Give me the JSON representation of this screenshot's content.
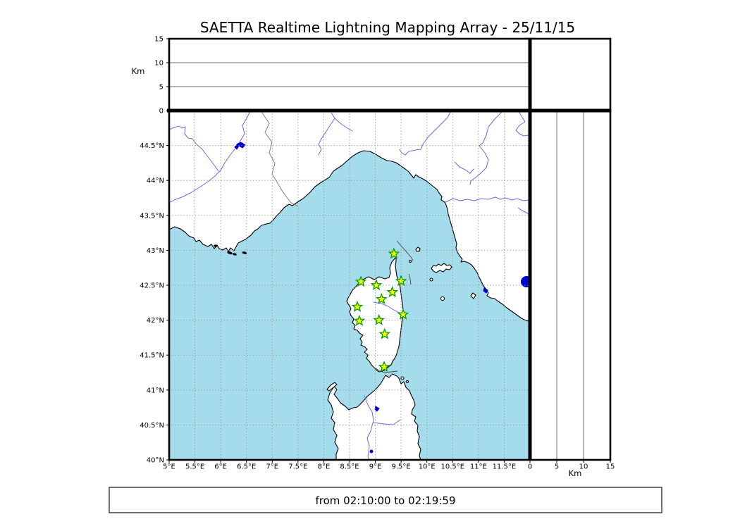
{
  "figure": {
    "title": "SAETTA Realtime Lightning Mapping Array - 25/11/15",
    "footer_text": "from 02:10:00 to 02:19:59"
  },
  "altitude_axis": {
    "label": "Km",
    "ticks": [
      0,
      5,
      10,
      15
    ],
    "max": 15
  },
  "map_axes": {
    "lon_range": [
      5.0,
      12.0
    ],
    "lat_range": [
      40.0,
      45.0
    ],
    "lon_ticks": [
      {
        "label": "5°E",
        "lon": 5.0
      },
      {
        "label": "5.5°E",
        "lon": 5.5
      },
      {
        "label": "6°E",
        "lon": 6.0
      },
      {
        "label": "6.5°E",
        "lon": 6.5
      },
      {
        "label": "7°E",
        "lon": 7.0
      },
      {
        "label": "7.5°E",
        "lon": 7.5
      },
      {
        "label": "8°E",
        "lon": 8.0
      },
      {
        "label": "8.5°E",
        "lon": 8.5
      },
      {
        "label": "9°E",
        "lon": 9.0
      },
      {
        "label": "9.5°E",
        "lon": 9.5
      },
      {
        "label": "10°E",
        "lon": 10.0
      },
      {
        "label": "10.5°E",
        "lon": 10.5
      },
      {
        "label": "11°E",
        "lon": 11.0
      },
      {
        "label": "11.5°E",
        "lon": 11.5
      }
    ],
    "lat_ticks": [
      {
        "label": "40°N",
        "lat": 40.0
      },
      {
        "label": "40.5°N",
        "lat": 40.5
      },
      {
        "label": "41°N",
        "lat": 41.0
      },
      {
        "label": "41.5°N",
        "lat": 41.5
      },
      {
        "label": "42°N",
        "lat": 42.0
      },
      {
        "label": "42.5°N",
        "lat": 42.5
      },
      {
        "label": "43°N",
        "lat": 43.0
      },
      {
        "label": "43.5°N",
        "lat": 43.5
      },
      {
        "label": "44°N",
        "lat": 44.0
      },
      {
        "label": "44.5°N",
        "lat": 44.5
      }
    ]
  },
  "stations": [
    {
      "lon": 9.36,
      "lat": 42.95
    },
    {
      "lon": 8.72,
      "lat": 42.55
    },
    {
      "lon": 9.02,
      "lat": 42.5
    },
    {
      "lon": 9.5,
      "lat": 42.56
    },
    {
      "lon": 9.33,
      "lat": 42.4
    },
    {
      "lon": 9.12,
      "lat": 42.3
    },
    {
      "lon": 8.65,
      "lat": 42.19
    },
    {
      "lon": 9.54,
      "lat": 42.08
    },
    {
      "lon": 8.69,
      "lat": 41.99
    },
    {
      "lon": 9.07,
      "lat": 42.0
    },
    {
      "lon": 9.18,
      "lat": 41.8
    },
    {
      "lon": 9.17,
      "lat": 41.33
    }
  ],
  "colors": {
    "sea": "#a5dcec",
    "land": "#ffffff",
    "coast": "#000000",
    "river": "#6b6bdf",
    "country_border": "#808080",
    "lake": "#0000cc",
    "grid_dotted": "#999999",
    "grid_solid": "#6e6e6e",
    "station_fill": "#ffff00",
    "station_edge": "#00a000",
    "frame": "#000000"
  }
}
